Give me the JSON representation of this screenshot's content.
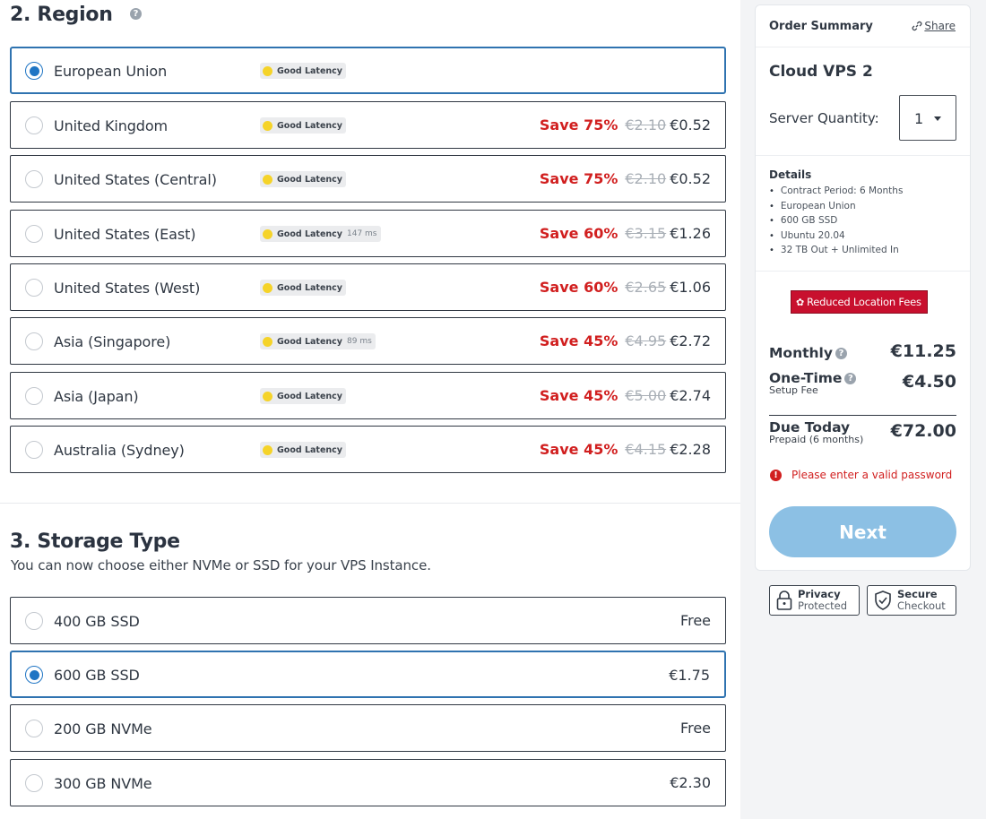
{
  "region": {
    "title": "2. Region",
    "help": "?",
    "options": [
      {
        "label": "European Union",
        "latency": "Good Latency",
        "ms": "",
        "save": "",
        "old_price": "",
        "price": "",
        "selected": true
      },
      {
        "label": "United Kingdom",
        "latency": "Good Latency",
        "ms": "",
        "save": "Save 75%",
        "old_price": "€2.10",
        "price": "€0.52",
        "selected": false
      },
      {
        "label": "United States (Central)",
        "latency": "Good Latency",
        "ms": "",
        "save": "Save 75%",
        "old_price": "€2.10",
        "price": "€0.52",
        "selected": false
      },
      {
        "label": "United States (East)",
        "latency": "Good Latency",
        "ms": "147 ms",
        "save": "Save 60%",
        "old_price": "€3.15",
        "price": "€1.26",
        "selected": false
      },
      {
        "label": "United States (West)",
        "latency": "Good Latency",
        "ms": "",
        "save": "Save 60%",
        "old_price": "€2.65",
        "price": "€1.06",
        "selected": false
      },
      {
        "label": "Asia (Singapore)",
        "latency": "Good Latency",
        "ms": "89 ms",
        "save": "Save 45%",
        "old_price": "€4.95",
        "price": "€2.72",
        "selected": false
      },
      {
        "label": "Asia (Japan)",
        "latency": "Good Latency",
        "ms": "",
        "save": "Save 45%",
        "old_price": "€5.00",
        "price": "€2.74",
        "selected": false
      },
      {
        "label": "Australia (Sydney)",
        "latency": "Good Latency",
        "ms": "",
        "save": "Save 45%",
        "old_price": "€4.15",
        "price": "€2.28",
        "selected": false
      }
    ]
  },
  "storage": {
    "title": "3. Storage Type",
    "subtitle": "You can now choose either NVMe or SSD for your VPS Instance.",
    "options": [
      {
        "label": "400 GB SSD",
        "price": "Free",
        "selected": false
      },
      {
        "label": "600 GB SSD",
        "price": "€1.75",
        "selected": true
      },
      {
        "label": "200 GB NVMe",
        "price": "Free",
        "selected": false
      },
      {
        "label": "300 GB NVMe",
        "price": "€2.30",
        "selected": false
      }
    ]
  },
  "summary": {
    "title": "Order Summary",
    "share": "Share",
    "plan": "Cloud VPS 2",
    "quantity_label": "Server Quantity:",
    "quantity": "1",
    "details_title": "Details",
    "details": [
      "Contract Period: 6 Months",
      "European Union",
      "600 GB SSD",
      "Ubuntu 20.04",
      "32 TB Out + Unlimited In"
    ],
    "fees_badge": "Reduced Location Fees",
    "monthly_label": "Monthly",
    "monthly_value": "€11.25",
    "onetime_label": "One-Time",
    "onetime_sub": "Setup Fee",
    "onetime_value": "€4.50",
    "due_label": "Due Today",
    "due_sub": "Prepaid (6 months)",
    "due_value": "€72.00",
    "error": "Please enter a valid password",
    "next": "Next",
    "badges": [
      {
        "line1": "Privacy",
        "line2": "Protected"
      },
      {
        "line1": "Secure",
        "line2": "Checkout"
      }
    ]
  },
  "colors": {
    "accent": "#1f75c4",
    "save": "#d11f1f",
    "badge": "#c8102e",
    "next": "#8cc0e4",
    "latency_dot": "#f5d329"
  }
}
